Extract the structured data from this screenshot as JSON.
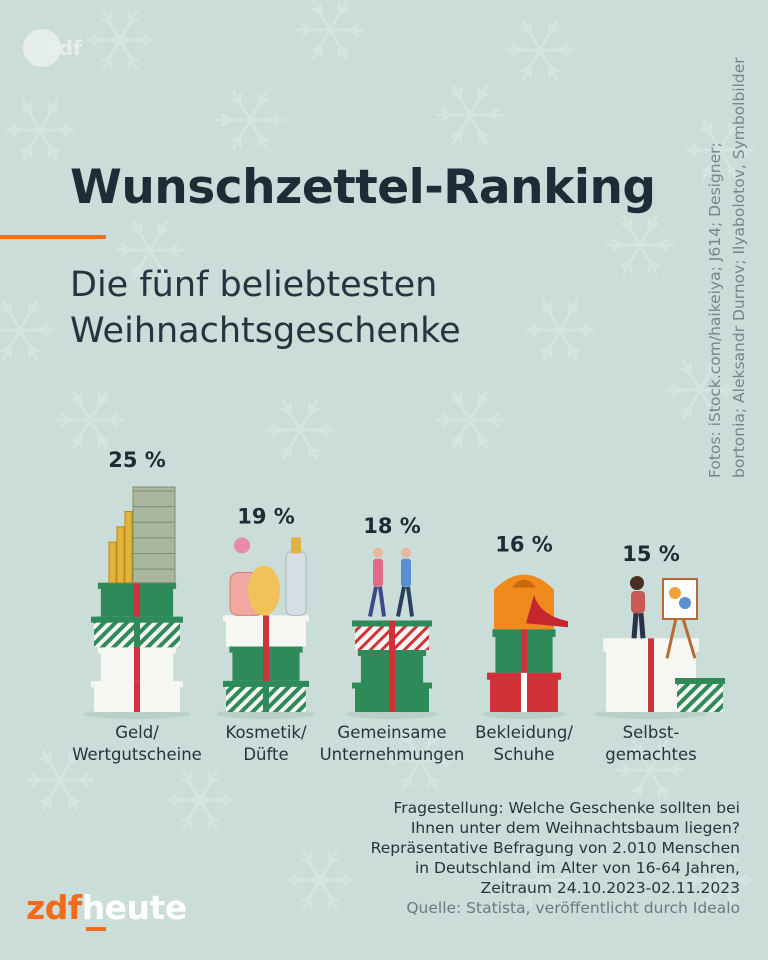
{
  "logo_top_text": "zdf",
  "title": "Wunschzettel-Ranking",
  "subtitle": [
    "Die fünf beliebtesten",
    "Weihnachtsgeschenke"
  ],
  "credits": [
    "Fotos: iStock.com/haikeiya; J614; Designer;",
    "bortonia; Aleksandr Durnov; Ilyabolotov, Symbolbilder"
  ],
  "chart_data": {
    "type": "bar",
    "categories": [
      "Geld/ Wertgutscheine",
      "Kosmetik/ Düfte",
      "Gemeinsame Unternehmungen",
      "Bekleidung/ Schuhe",
      "Selbst- gemachtes"
    ],
    "category_lines": [
      [
        "Geld/",
        "Wertgutscheine"
      ],
      [
        "Kosmetik/",
        "Düfte"
      ],
      [
        "Gemeinsame",
        "Unternehmungen"
      ],
      [
        "Bekleidung/",
        "Schuhe"
      ],
      [
        "Selbst-",
        "gemachtes"
      ]
    ],
    "values": [
      25,
      19,
      18,
      16,
      15
    ],
    "value_labels": [
      "25 %",
      "19 %",
      "18 %",
      "16 %",
      "15 %"
    ],
    "unit": "%"
  },
  "notes": [
    "Fragestellung: Welche Geschenke sollten bei",
    "Ihnen unter dem Weihnachtsbaum liegen?",
    "Repräsentative Befragung von 2.010 Menschen",
    "in Deutschland im Alter von 16-64 Jahren,",
    "Zeitraum 24.10.2023-02.11.2023"
  ],
  "source": "Quelle: Statista, veröffentlicht durch Idealo",
  "brand": {
    "part1": "zdf",
    "part2": "heute"
  },
  "colors": {
    "background": "#cbddd8",
    "accent": "#f06e1e",
    "text": "#1f2b37",
    "gift_green": "#2f8a5a",
    "gift_red": "#d2313a",
    "gift_white": "#f6f6f2"
  }
}
